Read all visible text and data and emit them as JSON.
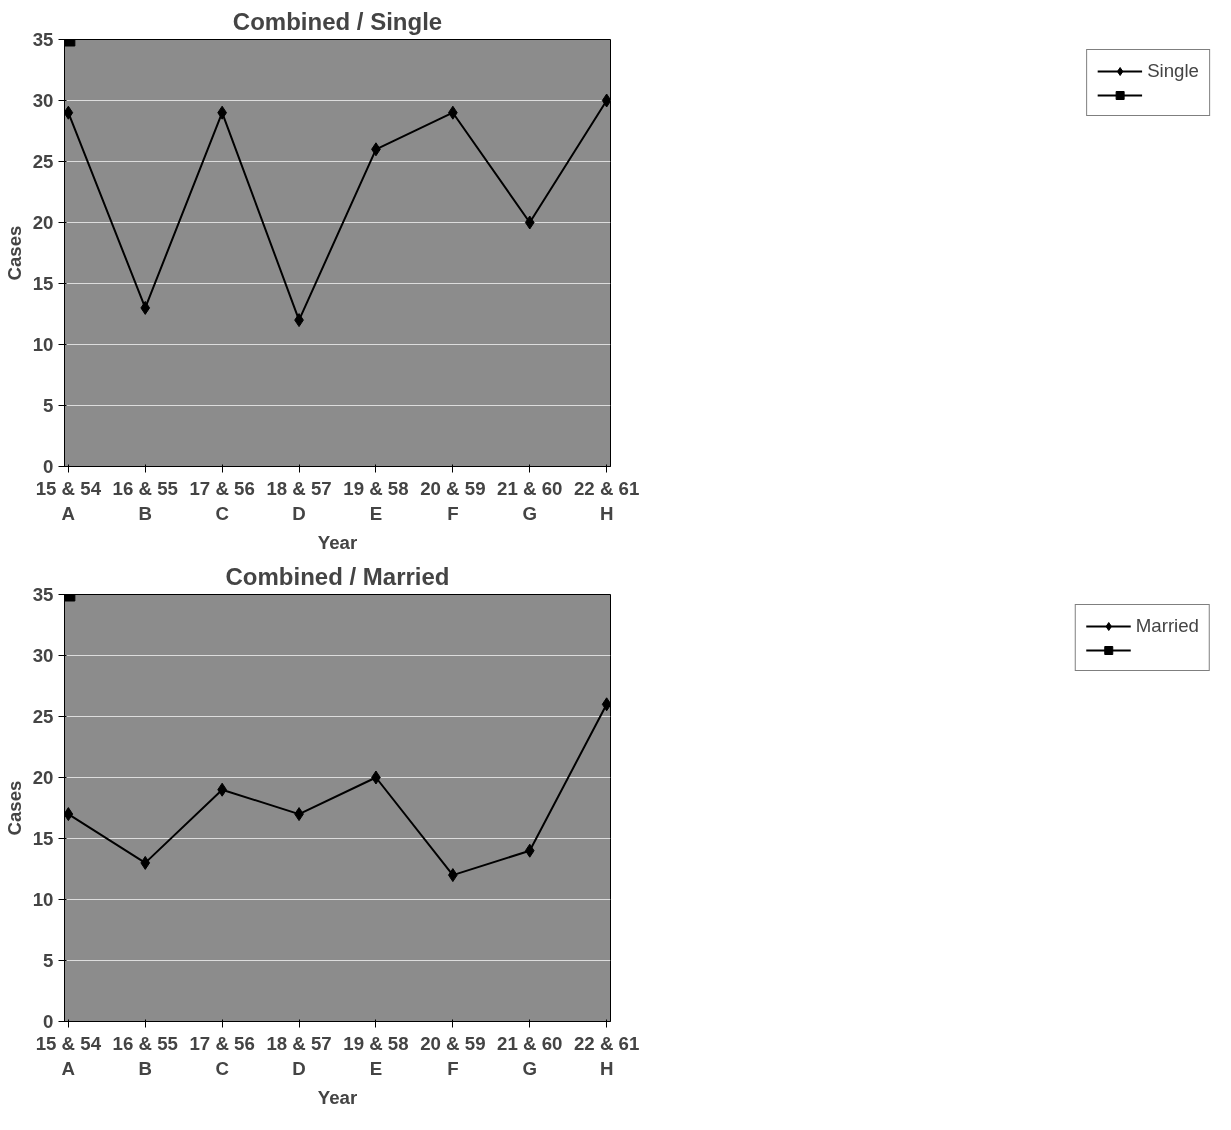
{
  "chart_data": [
    {
      "type": "line",
      "title": "Combined / Single",
      "xlabel": "Year",
      "ylabel": "Cases",
      "categories": [
        "15 & 54\nA",
        "16 & 55\nB",
        "17 & 56\nC",
        "18 & 57\nD",
        "19 & 58\nE",
        "20 & 59\nF",
        "21 & 60\nG",
        "22 & 61\nH"
      ],
      "series": [
        {
          "name": "Single",
          "color": "#000000",
          "marker": "diamond",
          "values": [
            29,
            13,
            29,
            12,
            26,
            29,
            20,
            30
          ]
        },
        {
          "color": "#000000",
          "marker": "square",
          "values": [
            35,
            null,
            null,
            null,
            null,
            null,
            null,
            null
          ]
        }
      ],
      "ylim": [
        0,
        35
      ],
      "yticks": [
        0,
        5,
        10,
        15,
        20,
        25,
        30,
        35
      ],
      "grid": "y",
      "legend": "right"
    },
    {
      "type": "line",
      "title": "Combined / Married",
      "xlabel": "Year",
      "ylabel": "Cases",
      "categories": [
        "15 & 54\nA",
        "16 & 55\nB",
        "17 & 56\nC",
        "18 & 57\nD",
        "19 & 58\nE",
        "20 & 59\nF",
        "21 & 60\nG",
        "22 & 61\nH"
      ],
      "series": [
        {
          "name": "Married",
          "color": "#000000",
          "marker": "diamond",
          "values": [
            17,
            13,
            19,
            17,
            20,
            12,
            14,
            26
          ]
        },
        {
          "color": "#000000",
          "marker": "square",
          "values": [
            35,
            null,
            null,
            null,
            null,
            null,
            null,
            null
          ]
        }
      ],
      "ylim": [
        0,
        35
      ],
      "yticks": [
        0,
        5,
        10,
        15,
        20,
        25,
        30,
        35
      ],
      "grid": "y",
      "legend": "right"
    }
  ]
}
